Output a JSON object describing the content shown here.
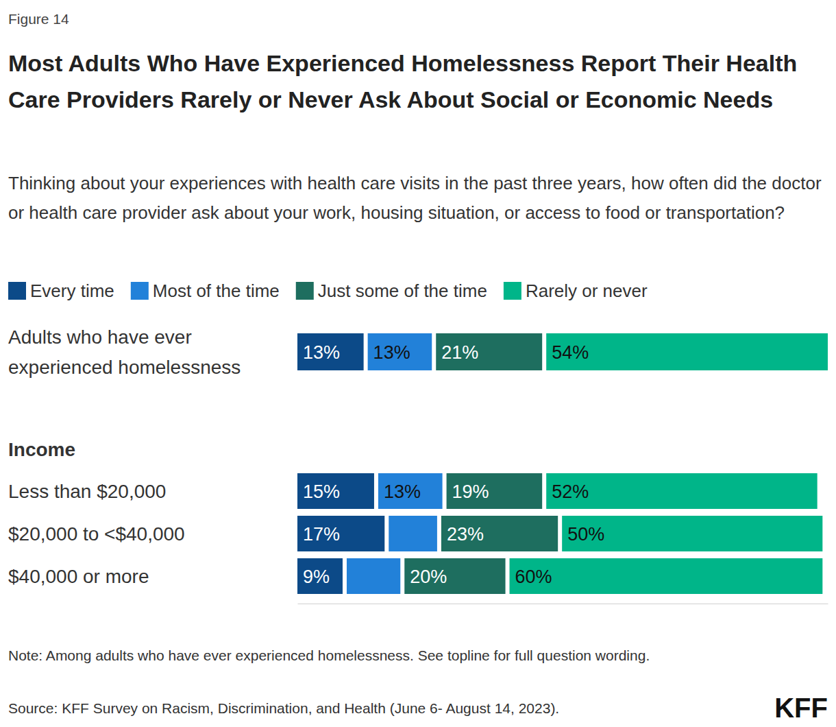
{
  "chart_data": {
    "type": "bar",
    "orientation": "horizontal",
    "stacked": true,
    "data_labels": true,
    "tick_labels": false,
    "legend": "top",
    "figure_label": "Figure 14",
    "title": "Most Adults Who Have Experienced Homelessness Report Their Health Care Providers Rarely or Never Ask About Social or Economic Needs",
    "subtitle": "Thinking about your experiences with health care visits in the past three years, how often did the doctor or health care provider ask about your work, housing situation, or access to food or transportation?",
    "group_title": "Income",
    "categories": [
      "Adults who have ever experienced homelessness",
      "Less than $20,000",
      "$20,000 to <$40,000",
      "$40,000 or more"
    ],
    "series": [
      {
        "name": "Every time",
        "color": "#0c4a88",
        "values": [
          13,
          15,
          17,
          9
        ],
        "value_labels": [
          "13%",
          "15%",
          "17%",
          "9%"
        ]
      },
      {
        "name": "Most of the time",
        "color": "#2281d9",
        "values": [
          13,
          13,
          10,
          11
        ],
        "value_labels": [
          "13%",
          "13%",
          null,
          null
        ]
      },
      {
        "name": "Just some of the time",
        "color": "#1e6e5f",
        "values": [
          21,
          19,
          23,
          20
        ],
        "value_labels": [
          "21%",
          "19%",
          "23%",
          "20%"
        ]
      },
      {
        "name": "Rarely or never",
        "color": "#00b589",
        "values": [
          54,
          52,
          50,
          60
        ],
        "value_labels": [
          "54%",
          "52%",
          "50%",
          "60%"
        ]
      }
    ],
    "xlim": [
      0,
      101
    ],
    "xticks": [],
    "note": "Note: Among adults who have ever experienced homelessness. See topline for full question wording.",
    "source": "Source: KFF Survey on Racism, Discrimination, and Health (June 6- August 14, 2023).",
    "logo": "KFF"
  }
}
